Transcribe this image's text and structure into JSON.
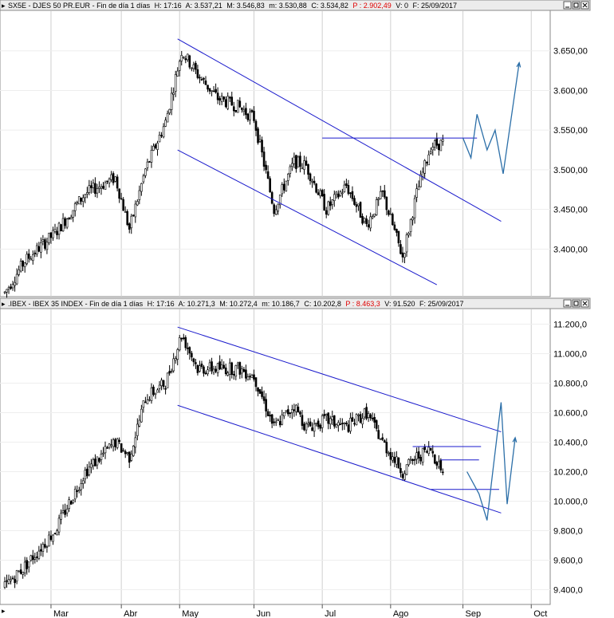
{
  "colors": {
    "candle": "#000000",
    "channel": "#1a1acc",
    "projection": "#2c6fa8",
    "grid": "#cfcfcf"
  },
  "x_axis": {
    "months": [
      "Mar",
      "Abr",
      "May",
      "Jun",
      "Jul",
      "Ago",
      "Sep",
      "Oct"
    ]
  },
  "chart_data": [
    {
      "type": "candlestick",
      "header": {
        "symbol": "SX5E - DJES 50 PR.EUR",
        "period": "Fin de día 1 días",
        "H": "H: 17:16",
        "A": "A: 3.537,21",
        "M": "M: 3.546,83",
        "m": "m: 3.530,88",
        "C": "C: 3.534,82",
        "P": "P : 2.902,49",
        "V": "V: 0",
        "F": "F: 25/09/2017"
      },
      "yticks": [
        "3.650,00",
        "3.600,00",
        "3.550,00",
        "3.500,00",
        "3.450,00",
        "3.400,00"
      ],
      "ylim": [
        3340,
        3700
      ],
      "anchors": [
        [
          0,
          3345
        ],
        [
          10,
          3385
        ],
        [
          25,
          3420
        ],
        [
          40,
          3470
        ],
        [
          55,
          3490
        ],
        [
          62,
          3425
        ],
        [
          70,
          3500
        ],
        [
          80,
          3560
        ],
        [
          88,
          3650
        ],
        [
          96,
          3620
        ],
        [
          106,
          3590
        ],
        [
          116,
          3580
        ],
        [
          124,
          3565
        ],
        [
          134,
          3450
        ],
        [
          144,
          3510
        ],
        [
          150,
          3505
        ],
        [
          160,
          3450
        ],
        [
          170,
          3480
        ],
        [
          180,
          3430
        ],
        [
          188,
          3470
        ],
        [
          198,
          3390
        ],
        [
          205,
          3470
        ],
        [
          212,
          3530
        ],
        [
          218,
          3534
        ]
      ],
      "channel_lines": [
        {
          "from": [
            86,
            3665
          ],
          "to": [
            247,
            3435
          ]
        },
        {
          "from": [
            86,
            3525
          ],
          "to": [
            215,
            3355
          ]
        },
        {
          "from": [
            158,
            3540
          ],
          "to": [
            235,
            3540
          ]
        }
      ],
      "projection": [
        [
          228,
          3540
        ],
        [
          232,
          3515
        ],
        [
          235,
          3570
        ],
        [
          240,
          3525
        ],
        [
          244,
          3550
        ],
        [
          248,
          3495
        ],
        [
          256,
          3635
        ]
      ]
    },
    {
      "type": "candlestick",
      "header": {
        "symbol": ".IBEX - IBEX 35 INDEX",
        "period": "Fin de día 1 días",
        "H": "H: 17:16",
        "A": "A: 10.271,3",
        "M": "M: 10.272,4",
        "m": "m: 10.186,7",
        "C": "C: 10.202,8",
        "P": "P : 8.463,3",
        "V": "V: 91.520",
        "F": "F: 25/09/2017"
      },
      "yticks": [
        "11.200,0",
        "11.000,0",
        "10.800,0",
        "10.600,0",
        "10.400,0",
        "10.200,0",
        "10.000,0",
        "9.800,0",
        "9.600,0",
        "9.400,0"
      ],
      "ylim": [
        9300,
        11300
      ],
      "anchors": [
        [
          0,
          9420
        ],
        [
          10,
          9560
        ],
        [
          25,
          9800
        ],
        [
          40,
          10200
        ],
        [
          55,
          10400
        ],
        [
          62,
          10300
        ],
        [
          70,
          10700
        ],
        [
          80,
          10800
        ],
        [
          88,
          11130
        ],
        [
          96,
          10900
        ],
        [
          106,
          10900
        ],
        [
          116,
          10900
        ],
        [
          124,
          10850
        ],
        [
          134,
          10500
        ],
        [
          144,
          10650
        ],
        [
          150,
          10500
        ],
        [
          160,
          10550
        ],
        [
          170,
          10500
        ],
        [
          180,
          10600
        ],
        [
          188,
          10400
        ],
        [
          198,
          10200
        ],
        [
          205,
          10300
        ],
        [
          212,
          10350
        ],
        [
          218,
          10202
        ]
      ],
      "channel_lines": [
        {
          "from": [
            86,
            11180
          ],
          "to": [
            247,
            10470
          ]
        },
        {
          "from": [
            86,
            10650
          ],
          "to": [
            247,
            9920
          ]
        },
        {
          "from": [
            203,
            10370
          ],
          "to": [
            237,
            10370
          ]
        },
        {
          "from": [
            217,
            10280
          ],
          "to": [
            236,
            10280
          ]
        },
        {
          "from": [
            212,
            10080
          ],
          "to": [
            246,
            10080
          ]
        }
      ],
      "projection": [
        [
          230,
          10200
        ],
        [
          236,
          10050
        ],
        [
          240,
          9870
        ],
        [
          243,
          10220
        ],
        [
          247,
          10670
        ],
        [
          250,
          9980
        ],
        [
          254,
          10430
        ]
      ]
    }
  ]
}
